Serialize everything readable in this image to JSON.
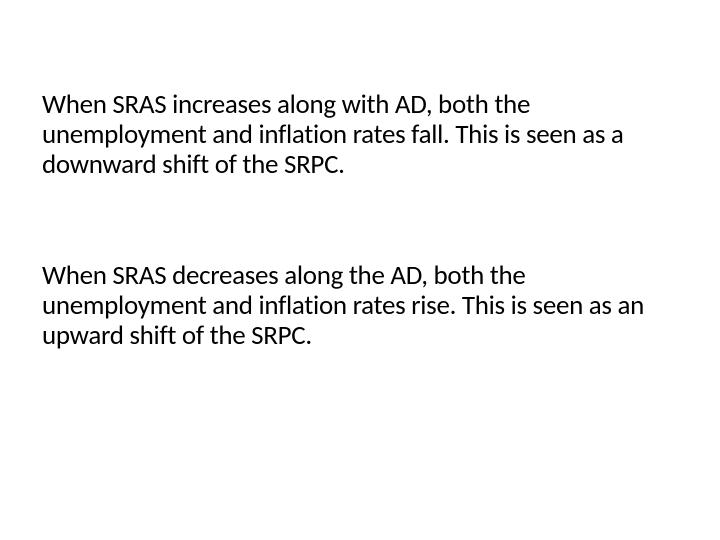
{
  "slide": {
    "background_color": "#ffffff",
    "text_color": "#000000",
    "font_family": "Calibri",
    "font_size_pt": 20,
    "paragraphs": [
      "When SRAS increases along with AD, both the unemployment and inflation rates fall.  This is seen as a downward shift of the SRPC.",
      "When SRAS decreases along the AD, both the unemployment and inflation rates rise. This is seen as an upward shift of the SRPC."
    ]
  }
}
